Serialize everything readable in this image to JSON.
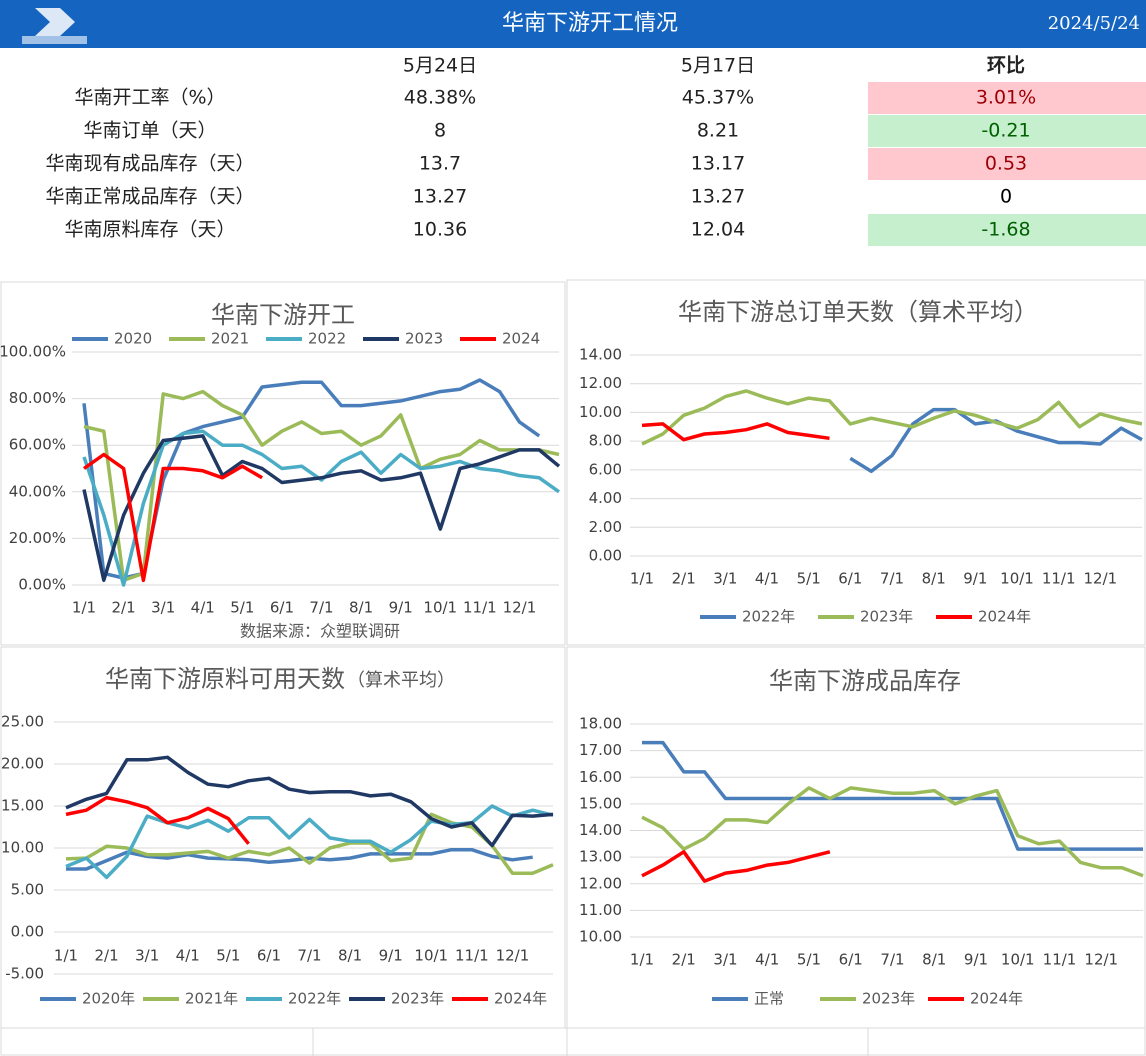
{
  "header": {
    "title": "华南下游开工情况",
    "date": "2024/5/24"
  },
  "table": {
    "columns": [
      "5月24日",
      "5月17日",
      "环比"
    ],
    "rows": [
      {
        "label": "华南开工率（%）",
        "cells": [
          "48.38%",
          "45.37%",
          "3.01%"
        ],
        "bg": "#ffc7ce",
        "fg": "#9c0006"
      },
      {
        "label": "华南订单（天）",
        "cells": [
          "8",
          "8.21",
          "-0.21"
        ],
        "bg": "#c6efce",
        "fg": "#006100"
      },
      {
        "label": "华南现有成品库存（天）",
        "cells": [
          "13.7",
          "13.17",
          "0.53"
        ],
        "bg": "#ffc7ce",
        "fg": "#9c0006"
      },
      {
        "label": "华南正常成品库存（天）",
        "cells": [
          "13.27",
          "13.27",
          "0"
        ],
        "bg": "#ffffff",
        "fg": "#000000"
      },
      {
        "label": "华南原料库存（天）",
        "cells": [
          "10.36",
          "12.04",
          "-1.68"
        ],
        "bg": "#c6efce",
        "fg": "#006100"
      }
    ]
  },
  "chart_data": [
    {
      "type": "line",
      "title": "华南下游开工",
      "note": "数据来源：众塑联调研",
      "legend": "top",
      "grid": true,
      "x": [
        1,
        1.5,
        2,
        2.5,
        3,
        3.5,
        4,
        4.5,
        5,
        5.5,
        6,
        6.5,
        7,
        7.5,
        8,
        8.5,
        9,
        9.5,
        10,
        10.5,
        11,
        11.5,
        12,
        12.5,
        13
      ],
      "xlim": [
        1,
        13
      ],
      "xticks": [
        {
          "value": 1,
          "label": "1/1"
        },
        {
          "value": 2,
          "label": "2/1"
        },
        {
          "value": 3,
          "label": "3/1"
        },
        {
          "value": 4,
          "label": "4/1"
        },
        {
          "value": 5,
          "label": "5/1"
        },
        {
          "value": 6,
          "label": "6/1"
        },
        {
          "value": 7,
          "label": "7/1"
        },
        {
          "value": 8,
          "label": "8/1"
        },
        {
          "value": 9,
          "label": "9/1"
        },
        {
          "value": 10,
          "label": "10/1"
        },
        {
          "value": 11,
          "label": "11/1"
        },
        {
          "value": 12,
          "label": "12/1"
        }
      ],
      "ylim": [
        0,
        100
      ],
      "yticks": [
        {
          "value": 0,
          "label": "0.00%"
        },
        {
          "value": 20,
          "label": "20.00%"
        },
        {
          "value": 40,
          "label": "40.00%"
        },
        {
          "value": 60,
          "label": "60.00%"
        },
        {
          "value": 80,
          "label": "80.00%"
        },
        {
          "value": 100,
          "label": "100.00%"
        }
      ],
      "series": [
        {
          "name": "2020",
          "color": "#4a7ebb",
          "values": [
            78,
            5,
            3,
            5,
            45,
            65,
            68,
            70,
            72,
            85,
            86,
            87,
            87,
            77,
            77,
            78,
            79,
            81,
            83,
            84,
            88,
            83,
            70,
            64,
            null
          ]
        },
        {
          "name": "2021",
          "color": "#9bbb59",
          "values": [
            68,
            66,
            2,
            5,
            82,
            80,
            83,
            77,
            73,
            60,
            66,
            70,
            65,
            66,
            60,
            64,
            73,
            50,
            54,
            56,
            62,
            58,
            58,
            58,
            56
          ]
        },
        {
          "name": "2022",
          "color": "#4bacc6",
          "values": [
            55,
            30,
            0,
            35,
            60,
            65,
            66,
            60,
            60,
            56,
            50,
            51,
            45,
            53,
            57,
            48,
            56,
            50,
            51,
            53,
            50,
            49,
            47,
            46,
            40
          ]
        },
        {
          "name": "2023",
          "color": "#1f3864",
          "values": [
            41,
            2,
            30,
            48,
            62,
            63,
            64,
            47,
            53,
            50,
            44,
            45,
            46,
            48,
            49,
            45,
            46,
            48,
            24,
            50,
            52,
            55,
            58,
            58,
            51
          ]
        },
        {
          "name": "2024",
          "color": "#ff0000",
          "values": [
            50,
            56,
            50,
            2,
            50,
            50,
            49,
            46,
            51,
            46,
            null,
            null,
            null,
            null,
            null,
            null,
            null,
            null,
            null,
            null,
            null,
            null,
            null,
            null,
            null
          ]
        }
      ]
    },
    {
      "type": "line",
      "title": "华南下游总订单天数（算术平均）",
      "legend": "bottom",
      "grid": true,
      "x": [
        1,
        1.5,
        2,
        2.5,
        3,
        3.5,
        4,
        4.5,
        5,
        5.5,
        6,
        6.5,
        7,
        7.5,
        8,
        8.5,
        9,
        9.5,
        10,
        10.5,
        11,
        11.5,
        12,
        12.5,
        13
      ],
      "xlim": [
        1,
        13
      ],
      "xticks": [
        {
          "value": 1,
          "label": "1/1"
        },
        {
          "value": 2,
          "label": "2/1"
        },
        {
          "value": 3,
          "label": "3/1"
        },
        {
          "value": 4,
          "label": "4/1"
        },
        {
          "value": 5,
          "label": "5/1"
        },
        {
          "value": 6,
          "label": "6/1"
        },
        {
          "value": 7,
          "label": "7/1"
        },
        {
          "value": 8,
          "label": "8/1"
        },
        {
          "value": 9,
          "label": "9/1"
        },
        {
          "value": 10,
          "label": "10/1"
        },
        {
          "value": 11,
          "label": "11/1"
        },
        {
          "value": 12,
          "label": "12/1"
        }
      ],
      "ylim": [
        0,
        14
      ],
      "yticks": [
        {
          "value": 0,
          "label": "0.00"
        },
        {
          "value": 2,
          "label": "2.00"
        },
        {
          "value": 4,
          "label": "4.00"
        },
        {
          "value": 6,
          "label": "6.00"
        },
        {
          "value": 8,
          "label": "8.00"
        },
        {
          "value": 10,
          "label": "10.00"
        },
        {
          "value": 12,
          "label": "12.00"
        },
        {
          "value": 14,
          "label": "14.00"
        }
      ],
      "series": [
        {
          "name": "2022年",
          "color": "#4a7ebb",
          "values": [
            null,
            null,
            null,
            null,
            null,
            null,
            null,
            null,
            null,
            null,
            6.8,
            5.9,
            7.0,
            9.2,
            10.2,
            10.2,
            9.2,
            9.4,
            8.7,
            8.3,
            7.9,
            7.9,
            7.8,
            8.9,
            8.1
          ]
        },
        {
          "name": "2023年",
          "color": "#9bbb59",
          "values": [
            7.8,
            8.5,
            9.8,
            10.3,
            11.1,
            11.5,
            11.0,
            10.6,
            11.0,
            10.8,
            9.2,
            9.6,
            9.3,
            9.0,
            9.6,
            10.1,
            9.8,
            9.3,
            8.9,
            9.5,
            10.7,
            9.0,
            9.9,
            9.5,
            9.2
          ]
        },
        {
          "name": "2024年",
          "color": "#ff0000",
          "values": [
            9.1,
            9.2,
            8.1,
            8.5,
            8.6,
            8.8,
            9.2,
            8.6,
            8.4,
            8.2,
            null,
            null,
            null,
            null,
            null,
            null,
            null,
            null,
            null,
            null,
            null,
            null,
            null,
            null,
            null
          ]
        }
      ]
    },
    {
      "type": "line",
      "title": "华南下游原料可用天数",
      "subtitle": "（算术平均）",
      "legend": "bottom",
      "grid": true,
      "x": [
        1,
        1.5,
        2,
        2.5,
        3,
        3.5,
        4,
        4.5,
        5,
        5.5,
        6,
        6.5,
        7,
        7.5,
        8,
        8.5,
        9,
        9.5,
        10,
        10.5,
        11,
        11.5,
        12,
        12.5,
        13
      ],
      "xlim": [
        1,
        13
      ],
      "xticks": [
        {
          "value": 1,
          "label": "1/1"
        },
        {
          "value": 2,
          "label": "2/1"
        },
        {
          "value": 3,
          "label": "3/1"
        },
        {
          "value": 4,
          "label": "4/1"
        },
        {
          "value": 5,
          "label": "5/1"
        },
        {
          "value": 6,
          "label": "6/1"
        },
        {
          "value": 7,
          "label": "7/1"
        },
        {
          "value": 8,
          "label": "8/1"
        },
        {
          "value": 9,
          "label": "9/1"
        },
        {
          "value": 10,
          "label": "10/1"
        },
        {
          "value": 11,
          "label": "11/1"
        },
        {
          "value": 12,
          "label": "12/1"
        }
      ],
      "ylim": [
        -5,
        25
      ],
      "yticks": [
        {
          "value": -5,
          "label": "-5.00"
        },
        {
          "value": 0,
          "label": "0.00"
        },
        {
          "value": 5,
          "label": "5.00"
        },
        {
          "value": 10,
          "label": "10.00"
        },
        {
          "value": 15,
          "label": "15.00"
        },
        {
          "value": 20,
          "label": "20.00"
        },
        {
          "value": 25,
          "label": "25.00"
        }
      ],
      "series": [
        {
          "name": "2020年",
          "color": "#4a7ebb",
          "values": [
            7.5,
            7.5,
            8.5,
            9.5,
            9,
            8.8,
            9.2,
            8.8,
            8.7,
            8.6,
            8.3,
            8.5,
            8.8,
            8.6,
            8.8,
            9.3,
            9.3,
            9.3,
            9.3,
            9.8,
            9.8,
            9.0,
            8.6,
            8.9,
            null
          ]
        },
        {
          "name": "2021年",
          "color": "#9bbb59",
          "values": [
            8.7,
            8.8,
            10.2,
            10,
            9.2,
            9.2,
            9.4,
            9.6,
            8.8,
            9.6,
            9.2,
            10.0,
            8.2,
            10,
            10.6,
            10.6,
            8.5,
            8.8,
            14,
            13,
            12.5,
            10.3,
            7,
            7,
            8
          ]
        },
        {
          "name": "2022年",
          "color": "#4bacc6",
          "values": [
            7.8,
            8.8,
            6.5,
            9,
            13.8,
            13,
            12.4,
            13.3,
            12,
            13.6,
            13.6,
            11.2,
            13.4,
            11.2,
            10.8,
            10.8,
            9.5,
            11,
            13.2,
            12.8,
            13,
            15,
            13.8,
            14.5,
            13.9
          ]
        },
        {
          "name": "2023年",
          "color": "#1f3864",
          "values": [
            14.8,
            15.8,
            16.5,
            20.5,
            20.5,
            20.8,
            19.0,
            17.6,
            17.3,
            18,
            18.3,
            17,
            16.6,
            16.7,
            16.7,
            16.2,
            16.4,
            15.5,
            13.5,
            12.5,
            13,
            10.3,
            13.9,
            13.8,
            14
          ]
        },
        {
          "name": "2024年",
          "color": "#ff0000",
          "values": [
            14,
            14.5,
            16,
            15.5,
            14.8,
            13,
            13.6,
            14.7,
            13.5,
            10.5,
            null,
            null,
            null,
            null,
            null,
            null,
            null,
            null,
            null,
            null,
            null,
            null,
            null,
            null,
            null
          ]
        }
      ]
    },
    {
      "type": "line",
      "title": "华南下游成品库存",
      "legend": "bottom",
      "grid": true,
      "x": [
        1,
        1.5,
        2,
        2.5,
        3,
        3.5,
        4,
        4.5,
        5,
        5.5,
        6,
        6.5,
        7,
        7.5,
        8,
        8.5,
        9,
        9.5,
        10,
        10.5,
        11,
        11.5,
        12,
        12.5,
        13
      ],
      "xlim": [
        1,
        13
      ],
      "xticks": [
        {
          "value": 1,
          "label": "1/1"
        },
        {
          "value": 2,
          "label": "2/1"
        },
        {
          "value": 3,
          "label": "3/1"
        },
        {
          "value": 4,
          "label": "4/1"
        },
        {
          "value": 5,
          "label": "5/1"
        },
        {
          "value": 6,
          "label": "6/1"
        },
        {
          "value": 7,
          "label": "7/1"
        },
        {
          "value": 8,
          "label": "8/1"
        },
        {
          "value": 9,
          "label": "9/1"
        },
        {
          "value": 10,
          "label": "10/1"
        },
        {
          "value": 11,
          "label": "11/1"
        },
        {
          "value": 12,
          "label": "12/1"
        }
      ],
      "ylim": [
        10,
        18
      ],
      "yticks": [
        {
          "value": 10,
          "label": "10.00"
        },
        {
          "value": 11,
          "label": "11.00"
        },
        {
          "value": 12,
          "label": "12.00"
        },
        {
          "value": 13,
          "label": "13.00"
        },
        {
          "value": 14,
          "label": "14.00"
        },
        {
          "value": 15,
          "label": "15.00"
        },
        {
          "value": 16,
          "label": "16.00"
        },
        {
          "value": 17,
          "label": "17.00"
        },
        {
          "value": 18,
          "label": "18.00"
        }
      ],
      "series": [
        {
          "name": "正常",
          "color": "#4a7ebb",
          "values": [
            17.3,
            17.3,
            16.2,
            16.2,
            15.2,
            15.2,
            15.2,
            15.2,
            15.2,
            15.2,
            15.2,
            15.2,
            15.2,
            15.2,
            15.2,
            15.2,
            15.2,
            15.2,
            13.3,
            13.3,
            13.3,
            13.3,
            13.3,
            13.3,
            13.3
          ]
        },
        {
          "name": "2023年",
          "color": "#9bbb59",
          "values": [
            14.5,
            14.1,
            13.3,
            13.7,
            14.4,
            14.4,
            14.3,
            15.0,
            15.6,
            15.2,
            15.6,
            15.5,
            15.4,
            15.4,
            15.5,
            15.0,
            15.3,
            15.5,
            13.8,
            13.5,
            13.6,
            12.8,
            12.6,
            12.6,
            12.3
          ]
        },
        {
          "name": "2024年",
          "color": "#ff0000",
          "values": [
            12.3,
            12.7,
            13.2,
            12.1,
            12.4,
            12.5,
            12.7,
            12.8,
            13.0,
            13.2,
            null,
            null,
            null,
            null,
            null,
            null,
            null,
            null,
            null,
            null,
            null,
            null,
            null,
            null,
            null
          ]
        }
      ]
    }
  ]
}
